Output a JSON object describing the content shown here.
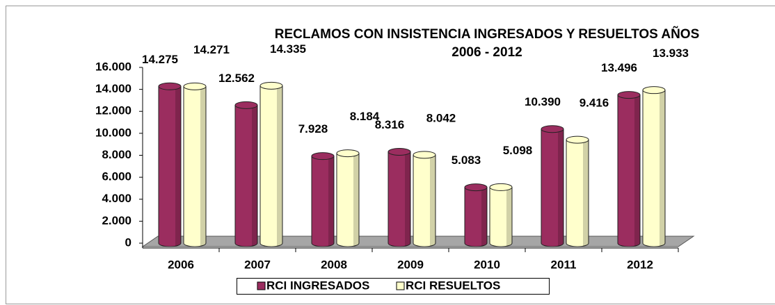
{
  "chart_data": {
    "type": "bar",
    "title": [
      "RECLAMOS CON INSISTENCIA INGRESADOS Y  RESUELTOS AÑOS",
      "2006 - 2012"
    ],
    "categories": [
      "2006",
      "2007",
      "2008",
      "2009",
      "2010",
      "2011",
      "2012"
    ],
    "series": [
      {
        "name": "RCI INGRESADOS",
        "color": "#9b2d5f",
        "values": [
          14275,
          12562,
          7928,
          8316,
          5083,
          10390,
          13496
        ],
        "value_labels": [
          "14.275",
          "12.562",
          "7.928",
          "8.316",
          "5.083",
          "10.390",
          "13.496"
        ]
      },
      {
        "name": "RCI RESUELTOS",
        "color": "#ffffcc",
        "values": [
          14271,
          14335,
          8184,
          8042,
          5098,
          9416,
          13933
        ],
        "value_labels": [
          "14.271",
          "14.335",
          "8.184",
          "8.042",
          "5.098",
          "9.416",
          "13.933"
        ]
      }
    ],
    "ylim": [
      0,
      16000
    ],
    "yticks": [
      0,
      {
        "value": 2000,
        "label": "2.000"
      },
      {
        "value": 4000,
        "label": "4.000"
      },
      {
        "value": 6000,
        "label": "6.000"
      },
      {
        "value": 8000,
        "label": "8.000"
      },
      {
        "value": 10000,
        "label": "10.000"
      },
      {
        "value": 12000,
        "label": "12.000"
      },
      {
        "value": 14000,
        "label": "14.000"
      },
      {
        "value": 16000,
        "label": "16.000"
      }
    ],
    "legend": "bottom"
  }
}
